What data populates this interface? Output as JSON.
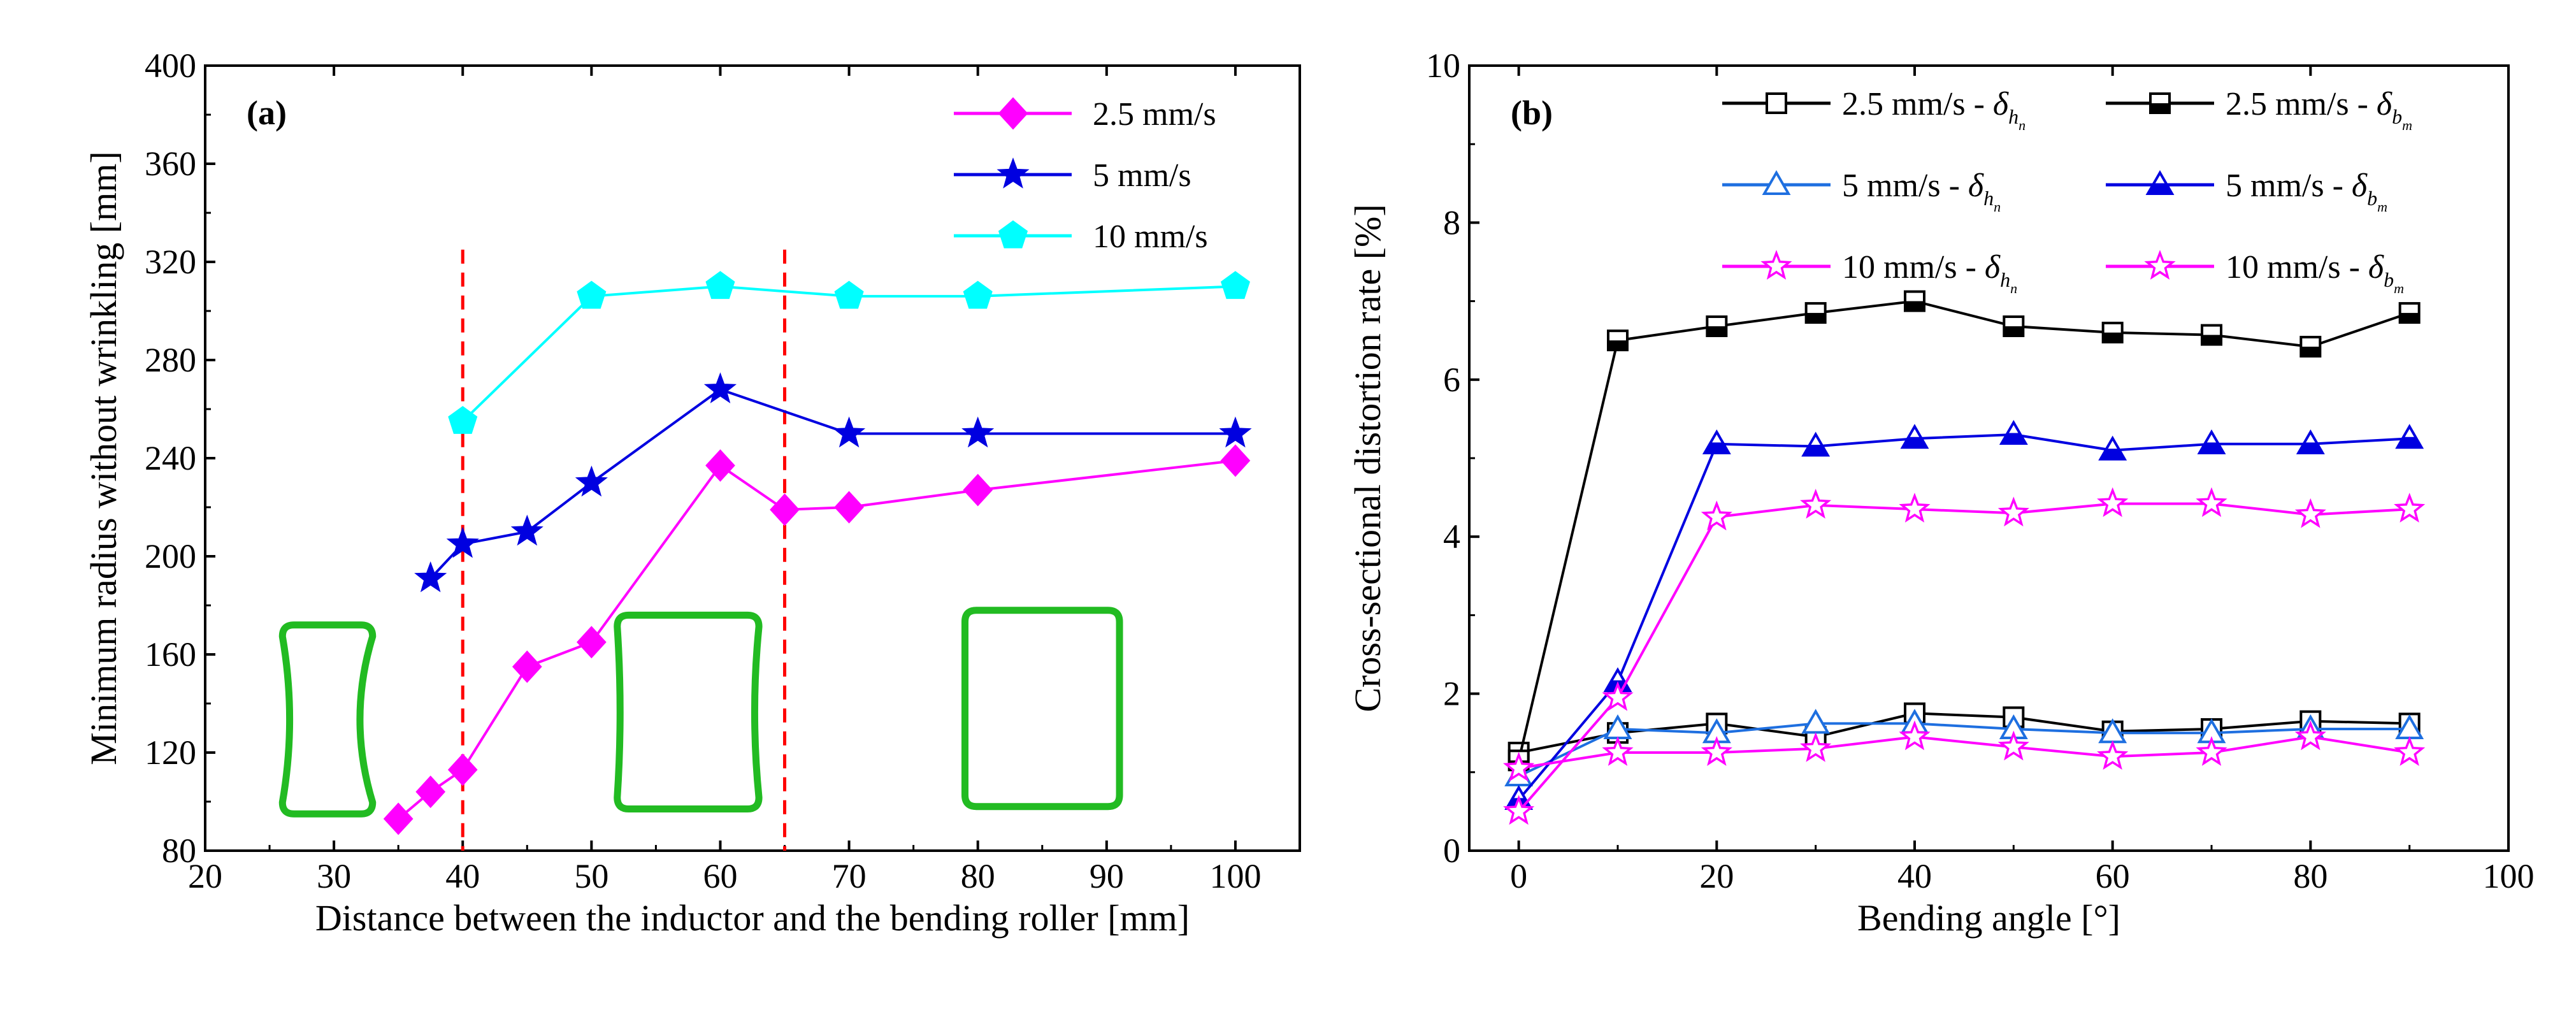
{
  "chart_data": [
    {
      "type": "line",
      "panel_label": "(a)",
      "xlabel": "Distance between the inductor and the bending roller [mm]",
      "ylabel": "Minimum radius without wrinkling [mm]",
      "xlim": [
        20,
        105
      ],
      "ylim": [
        80,
        400
      ],
      "xticks": [
        20,
        30,
        40,
        50,
        60,
        70,
        80,
        90,
        100
      ],
      "yticks": [
        80,
        120,
        160,
        200,
        240,
        280,
        320,
        360,
        400
      ],
      "vlines": [
        40,
        65
      ],
      "legend_position": "top-right",
      "series": [
        {
          "name": "2.5 mm/s",
          "color": "#ff00ff",
          "marker": "diamond",
          "x": [
            35,
            37.5,
            40,
            45,
            50,
            60,
            65,
            70,
            80,
            100
          ],
          "y": [
            93,
            104,
            113,
            155,
            165,
            237,
            219,
            220,
            227,
            239
          ]
        },
        {
          "name": "5 mm/s",
          "color": "#0000e0",
          "marker": "star",
          "x": [
            37.5,
            40,
            45,
            50,
            60,
            70,
            80,
            100
          ],
          "y": [
            191,
            205,
            210,
            230,
            268,
            250,
            250,
            250
          ]
        },
        {
          "name": "10 mm/s",
          "color": "#00ffff",
          "marker": "pentagon",
          "x": [
            40,
            50,
            60,
            70,
            80,
            100
          ],
          "y": [
            255,
            306,
            310,
            306,
            306,
            310
          ]
        }
      ],
      "cross_sections": [
        {
          "shape": "concave-sides",
          "x_range": [
            26,
            33
          ],
          "y_range": [
            95,
            172
          ]
        },
        {
          "shape": "slightly-convex",
          "x_range": [
            52,
            63
          ],
          "y_range": [
            97,
            176
          ]
        },
        {
          "shape": "rounded-rect",
          "x_range": [
            79,
            91
          ],
          "y_range": [
            98,
            178
          ]
        }
      ]
    },
    {
      "type": "line",
      "panel_label": "(b)",
      "xlabel": "Bending angle [°]",
      "ylabel": "Cross-sectional distortion rate [%]",
      "xlim": [
        -5,
        100
      ],
      "ylim": [
        0,
        10
      ],
      "xticks": [
        0,
        20,
        40,
        60,
        80,
        100
      ],
      "yticks": [
        0,
        2,
        4,
        6,
        8,
        10
      ],
      "legend_position": "top",
      "legend": {
        "symbol": "δ",
        "sub_h": "h",
        "sub_b": "b",
        "subsub_n": "n",
        "subsub_m": "m"
      },
      "series": [
        {
          "name": "2.5 mm/s - δhn",
          "speed": "2.5 mm/s",
          "sub": "h",
          "subsub": "n",
          "color": "#000000",
          "marker": "square-open",
          "x": [
            0,
            10,
            20,
            30,
            40,
            50,
            60,
            70,
            80,
            90
          ],
          "y": [
            1.25,
            1.5,
            1.62,
            1.45,
            1.75,
            1.7,
            1.52,
            1.55,
            1.65,
            1.62
          ]
        },
        {
          "name": "2.5 mm/s - δbm",
          "speed": "2.5 mm/s",
          "sub": "b",
          "subsub": "m",
          "color": "#000000",
          "marker": "square-half",
          "x": [
            0,
            10,
            20,
            30,
            40,
            50,
            60,
            70,
            80,
            90
          ],
          "y": [
            1.15,
            6.5,
            6.68,
            6.85,
            7.0,
            6.68,
            6.6,
            6.57,
            6.42,
            6.85
          ]
        },
        {
          "name": "5 mm/s - δhn",
          "speed": "5 mm/s",
          "sub": "h",
          "subsub": "n",
          "color": "#1e6fe0",
          "marker": "triangle-open",
          "x": [
            0,
            10,
            20,
            30,
            40,
            50,
            60,
            70,
            80,
            90
          ],
          "y": [
            0.95,
            1.55,
            1.5,
            1.62,
            1.62,
            1.55,
            1.5,
            1.5,
            1.55,
            1.55
          ]
        },
        {
          "name": "5 mm/s - δbm",
          "speed": "5 mm/s",
          "sub": "b",
          "subsub": "m",
          "color": "#0000e0",
          "marker": "triangle-half",
          "x": [
            0,
            10,
            20,
            30,
            40,
            50,
            60,
            70,
            80,
            90
          ],
          "y": [
            0.65,
            2.15,
            5.18,
            5.15,
            5.25,
            5.3,
            5.1,
            5.18,
            5.18,
            5.25
          ]
        },
        {
          "name": "10 mm/s - δhn",
          "speed": "10 mm/s",
          "sub": "h",
          "subsub": "n",
          "color": "#ff00ff",
          "marker": "star-open",
          "x": [
            0,
            10,
            20,
            30,
            40,
            50,
            60,
            70,
            80,
            90
          ],
          "y": [
            1.05,
            1.25,
            1.25,
            1.3,
            1.45,
            1.32,
            1.2,
            1.25,
            1.45,
            1.25
          ]
        },
        {
          "name": "10 mm/s - δbm",
          "speed": "10 mm/s",
          "sub": "b",
          "subsub": "m",
          "color": "#ff00ff",
          "marker": "star-open",
          "x": [
            0,
            10,
            20,
            30,
            40,
            50,
            60,
            70,
            80,
            90
          ],
          "y": [
            0.5,
            1.95,
            4.25,
            4.4,
            4.35,
            4.3,
            4.42,
            4.42,
            4.28,
            4.35
          ]
        }
      ]
    }
  ]
}
